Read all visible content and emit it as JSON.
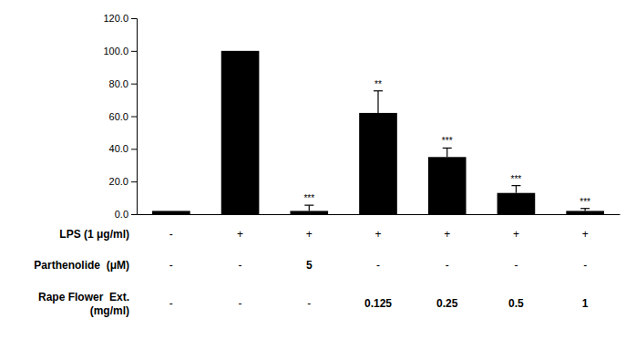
{
  "chart_data": {
    "type": "bar",
    "categories": [
      null,
      null,
      null,
      null,
      null,
      null,
      null
    ],
    "values": [
      2.0,
      100.0,
      2.0,
      62.0,
      35.0,
      13.0,
      2.0
    ],
    "errors": [
      0.0,
      0.0,
      3.5,
      13.5,
      5.5,
      4.5,
      1.5
    ],
    "color": "#000000",
    "significance": [
      null,
      null,
      "***",
      "**",
      "***",
      "***",
      "***"
    ],
    "ylim": [
      0,
      120.0
    ],
    "yticks": [
      {
        "value": 0.0,
        "label": "0.0"
      },
      {
        "value": 20.0,
        "label": "20.0"
      },
      {
        "value": 40.0,
        "label": "40.0"
      },
      {
        "value": 60.0,
        "label": "60.0"
      },
      {
        "value": 80.0,
        "label": "80.0"
      },
      {
        "value": 100.0,
        "label": "100.0"
      },
      {
        "value": 120.0,
        "label": "120.0"
      }
    ],
    "tick_labels": "y",
    "grid": false,
    "table": [
      {
        "label": "LPS (1 μg/ml)",
        "values": [
          "-",
          "+",
          "+",
          "+",
          "+",
          "+",
          "+"
        ]
      },
      {
        "label": "Parthenolide  (μM)",
        "values": [
          "-",
          "-",
          "5",
          "-",
          "-",
          "-",
          "-"
        ]
      },
      {
        "label": "Rape Flower  Ext.\n(mg/ml)",
        "values": [
          "-",
          "-",
          "-",
          "0.125",
          "0.25",
          "0.5",
          "1"
        ]
      }
    ]
  }
}
